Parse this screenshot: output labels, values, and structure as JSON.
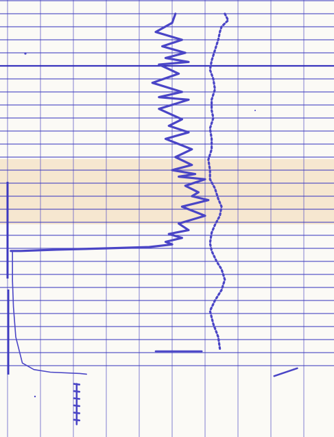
{
  "chart_data": {
    "type": "line",
    "title": "",
    "xlabel": "",
    "ylabel": "",
    "grid": true,
    "xlim": [
      0,
      10
    ],
    "ylim": [
      0,
      31.5
    ],
    "y_reversed": true,
    "series": [
      {
        "style": "solid-thick",
        "x": [
          5.1,
          5.0,
          4.5,
          5.3,
          4.7,
          5.4,
          4.8,
          5.5,
          4.6,
          5.2,
          4.4,
          5.3,
          4.6,
          5.5,
          4.6,
          5.3,
          4.9,
          5.5,
          4.8,
          5.6,
          5.1,
          5.6,
          5.0,
          5.7,
          5.2,
          6.0,
          5.4,
          5.8,
          5.6,
          6.1,
          5.3,
          6.0,
          5.2,
          5.5,
          4.9,
          5.3,
          4.8,
          5.0,
          4.3,
          3.0,
          1.5,
          0.4,
          0.1
        ],
        "y": [
          0.0,
          0.7,
          1.4,
          2.0,
          2.5,
          3.0,
          3.4,
          3.7,
          3.9,
          4.6,
          5.3,
          6.0,
          6.4,
          6.6,
          7.3,
          8.1,
          8.6,
          9.1,
          9.6,
          10.4,
          11.0,
          11.6,
          12.0,
          12.3,
          12.5,
          12.7,
          13.2,
          13.7,
          14.0,
          14.3,
          14.8,
          15.5,
          16.1,
          16.6,
          16.9,
          17.2,
          17.5,
          17.7,
          17.9,
          18.0,
          18.1,
          18.2,
          18.2
        ]
      },
      {
        "style": "solid-thin",
        "x": [
          0.15,
          0.15,
          0.18,
          0.25,
          0.45,
          0.8,
          1.3,
          2.2,
          2.4
        ],
        "y": [
          18.3,
          20.5,
          22.5,
          24.8,
          26.8,
          27.3,
          27.5,
          27.6,
          27.65
        ]
      },
      {
        "style": "dotted",
        "x": [
          6.6,
          6.7,
          6.5,
          6.45,
          6.4,
          6.3,
          6.2,
          6.15,
          6.25,
          6.3,
          6.2,
          6.2,
          6.25,
          6.15,
          6.2,
          6.2,
          6.1,
          6.15,
          6.15,
          6.3,
          6.4,
          6.5,
          6.45,
          6.3,
          6.2,
          6.15,
          6.2,
          6.35,
          6.5,
          6.6,
          6.5,
          6.3,
          6.15,
          6.25,
          6.4,
          6.45
        ],
        "y": [
          0.0,
          0.5,
          1.0,
          1.4,
          2.0,
          2.8,
          3.6,
          4.3,
          5.0,
          5.8,
          6.6,
          7.4,
          8.0,
          8.8,
          9.6,
          10.4,
          11.2,
          12.0,
          12.7,
          13.4,
          14.2,
          14.8,
          15.5,
          16.2,
          16.8,
          17.6,
          18.2,
          19.0,
          19.6,
          20.4,
          21.2,
          22.0,
          22.8,
          23.8,
          24.8,
          25.7
        ]
      }
    ],
    "markers": [
      {
        "x": [
          4.5,
          5.9
        ],
        "y": [
          25.9,
          25.9
        ]
      },
      {
        "x": [
          8.1,
          8.8
        ],
        "y": [
          27.8,
          27.2
        ]
      },
      {
        "x": [
          2.1,
          2.1
        ],
        "y": [
          28.4,
          31.5
        ]
      }
    ]
  }
}
